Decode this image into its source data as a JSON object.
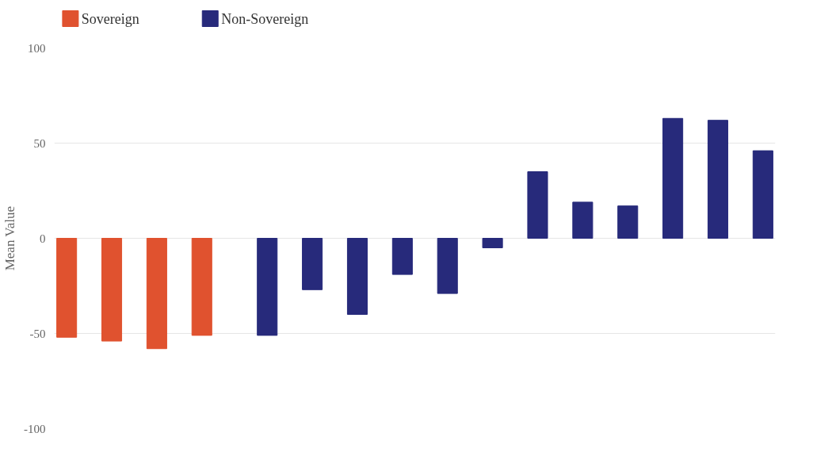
{
  "chart_data": {
    "type": "bar",
    "ylabel": "Mean Value",
    "categories": [
      null,
      null,
      null,
      null,
      null,
      null,
      null,
      null,
      null,
      null,
      null,
      null,
      null,
      null,
      null,
      null
    ],
    "series": [
      {
        "name": "Sovereign",
        "color": "#e0522f",
        "values": [
          -52,
          -54,
          -58,
          -51,
          null,
          null,
          null,
          null,
          null,
          null,
          null,
          null,
          null,
          null,
          null,
          null
        ]
      },
      {
        "name": "Non-Sovereign",
        "color": "#272a7b",
        "values": [
          null,
          null,
          null,
          null,
          -51,
          -27,
          -40,
          -19,
          -29,
          -5,
          35,
          19,
          17,
          63,
          62,
          46
        ]
      }
    ],
    "ylim": [
      -100,
      100
    ],
    "yticks": [
      -100,
      -50,
      0,
      50,
      100
    ],
    "grid": "y",
    "legend": "top left",
    "tick_labels": "y"
  }
}
